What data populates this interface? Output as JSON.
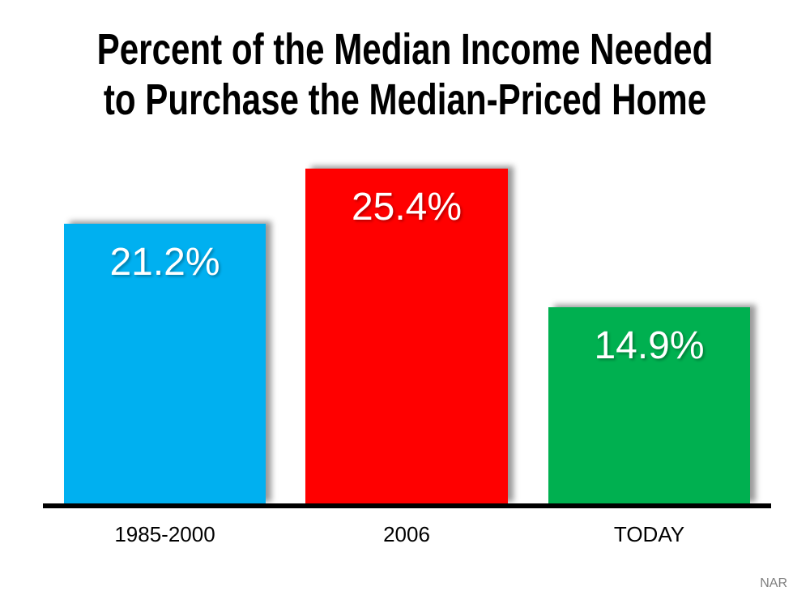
{
  "chart_data": {
    "type": "bar",
    "title": "Percent of the Median Income Needed to Purchase the Median-Priced Home",
    "title_lines": [
      "Percent of the Median Income Needed",
      "to Purchase the Median-Priced Home"
    ],
    "categories": [
      "1985-2000",
      "2006",
      "TODAY"
    ],
    "values": [
      21.2,
      25.4,
      14.9
    ],
    "value_labels": [
      "21.2%",
      "25.4%",
      "14.9%"
    ],
    "series": [
      {
        "name": "Percent of median income needed",
        "values": [
          21.2,
          25.4,
          14.9
        ]
      }
    ],
    "bar_colors": [
      "#00B0F0",
      "#FF0000",
      "#00B050"
    ],
    "value_label_color": "#FFFFFF",
    "axis_color": "#000000",
    "background_color": "#FFFFFF",
    "xlabel": "",
    "ylabel": "",
    "ylim": [
      0,
      26
    ],
    "grid": false,
    "legend": false,
    "legend_position": "none"
  },
  "footer": {
    "source_label": "NAR"
  }
}
